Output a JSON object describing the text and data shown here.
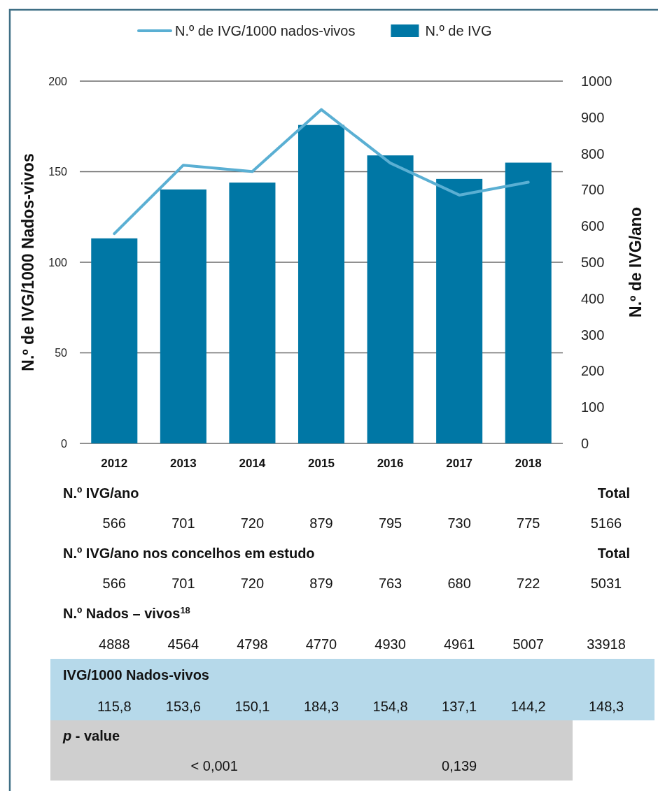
{
  "chart_data": {
    "type": "bar",
    "ylabel": "N.º de IVG/1000 Nados-vivos",
    "y2label": "N.º de IVG/ano",
    "categories": [
      "2012",
      "2013",
      "2014",
      "2015",
      "2016",
      "2017",
      "2018"
    ],
    "series": [
      {
        "name": "N.º de IVG/1000 nados-vivos",
        "type": "line",
        "axis": "y",
        "color": "#5aafd3",
        "values": [
          115.8,
          153.6,
          150.1,
          184.3,
          154.8,
          137.1,
          144.2
        ],
        "value_labels": [
          "115,8",
          "153,6",
          "150,1",
          "184,3",
          "154,8",
          "137,1",
          "144,2"
        ]
      },
      {
        "name": "N.º de IVG",
        "axis": "y2",
        "color": "#0077a5",
        "values": [
          566,
          701,
          720,
          879,
          795,
          730,
          775
        ],
        "value_labels": [
          "566",
          "701",
          "720",
          "879",
          "795",
          "730",
          "775"
        ]
      }
    ],
    "ylim": [
      0,
      200
    ],
    "yticks": [
      0,
      50,
      100,
      150,
      200
    ],
    "y2lim": [
      0,
      1000
    ],
    "y2ticks": [
      0,
      100,
      200,
      300,
      400,
      500,
      600,
      700,
      800,
      900,
      1000
    ],
    "grid": "y",
    "legend": "top",
    "marker": "none",
    "line_style": "solid",
    "annotations": [
      "N.º IVG/ano",
      "Total",
      "5166",
      "N.º IVG/ano nos concelhos em estudo",
      "Total",
      "566",
      "701",
      "720",
      "879",
      "763",
      "680",
      "722",
      "5031",
      "N.º Nados – vivos$^{18}$",
      "4888",
      "4564",
      "4798",
      "4770",
      "4930",
      "4961",
      "5007",
      "33918",
      "IVG/1000 Nados-vivos",
      "148,3",
      "p - value",
      "< 0,001",
      "0,139"
    ]
  }
}
